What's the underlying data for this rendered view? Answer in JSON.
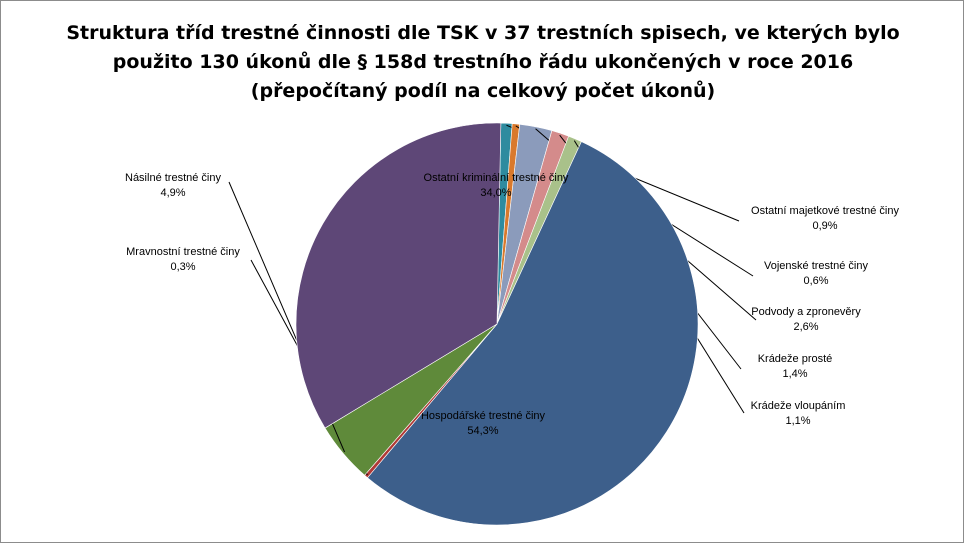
{
  "chart_data": {
    "type": "pie",
    "title_lines": [
      "Struktura tříd trestné činnosti dle TSK v 37 trestních spisech, ve kterých  bylo",
      "použito 130 úkonů dle § 158d trestního řádu ukončených v roce 2016",
      "(přepočítaný podíl na celkový počet úkonů)"
    ],
    "slices": [
      {
        "label": "Ostatní majetkové trestné činy",
        "value": 0.9,
        "value_label": "0,9%",
        "color": "#2e8b9f"
      },
      {
        "label": "Vojenské trestné činy",
        "value": 0.6,
        "value_label": "0,6%",
        "color": "#d9792c"
      },
      {
        "label": "Podvody a zpronevěry",
        "value": 2.6,
        "value_label": "2,6%",
        "color": "#8b9bbb"
      },
      {
        "label": "Krádeže prosté",
        "value": 1.4,
        "value_label": "1,4%",
        "color": "#d48b8b"
      },
      {
        "label": "Krádeže vloupáním",
        "value": 1.1,
        "value_label": "1,1%",
        "color": "#a9c18a"
      },
      {
        "label": "Hospodářské trestné činy",
        "value": 54.3,
        "value_label": "54,3%",
        "color": "#3d5f8b"
      },
      {
        "label": "Mravnostní trestné činy",
        "value": 0.3,
        "value_label": "0,3%",
        "color": "#b03a36"
      },
      {
        "label": "Násilné trestné činy",
        "value": 4.9,
        "value_label": "4,9%",
        "color": "#5f8a3a"
      },
      {
        "label": "Ostatní kriminální trestné činy",
        "value": 34.0,
        "value_label": "34,0%",
        "color": "#5e4777"
      }
    ]
  }
}
